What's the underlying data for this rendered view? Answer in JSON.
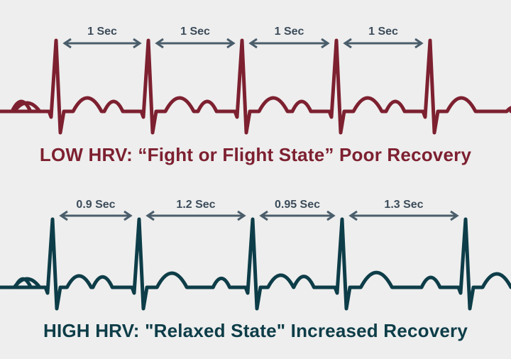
{
  "colors": {
    "background": "#eeeeee",
    "low_trace": "#7d2030",
    "high_trace": "#0d3d48",
    "arrow": "#4a5d6b"
  },
  "low_hrv": {
    "caption": "LOW HRV: “Fight or Flight State” Poor Recovery",
    "intervals": [
      {
        "label": "1 Sec",
        "seconds": 1
      },
      {
        "label": "1 Sec",
        "seconds": 1
      },
      {
        "label": "1 Sec",
        "seconds": 1
      },
      {
        "label": "1 Sec",
        "seconds": 1
      }
    ]
  },
  "high_hrv": {
    "caption": "HIGH HRV: \"Relaxed State\" Increased Recovery",
    "intervals": [
      {
        "label": "0.9 Sec",
        "seconds": 0.9
      },
      {
        "label": "1.2 Sec",
        "seconds": 1.2
      },
      {
        "label": "0.95 Sec",
        "seconds": 0.95
      },
      {
        "label": "1.3 Sec",
        "seconds": 1.3
      }
    ]
  }
}
